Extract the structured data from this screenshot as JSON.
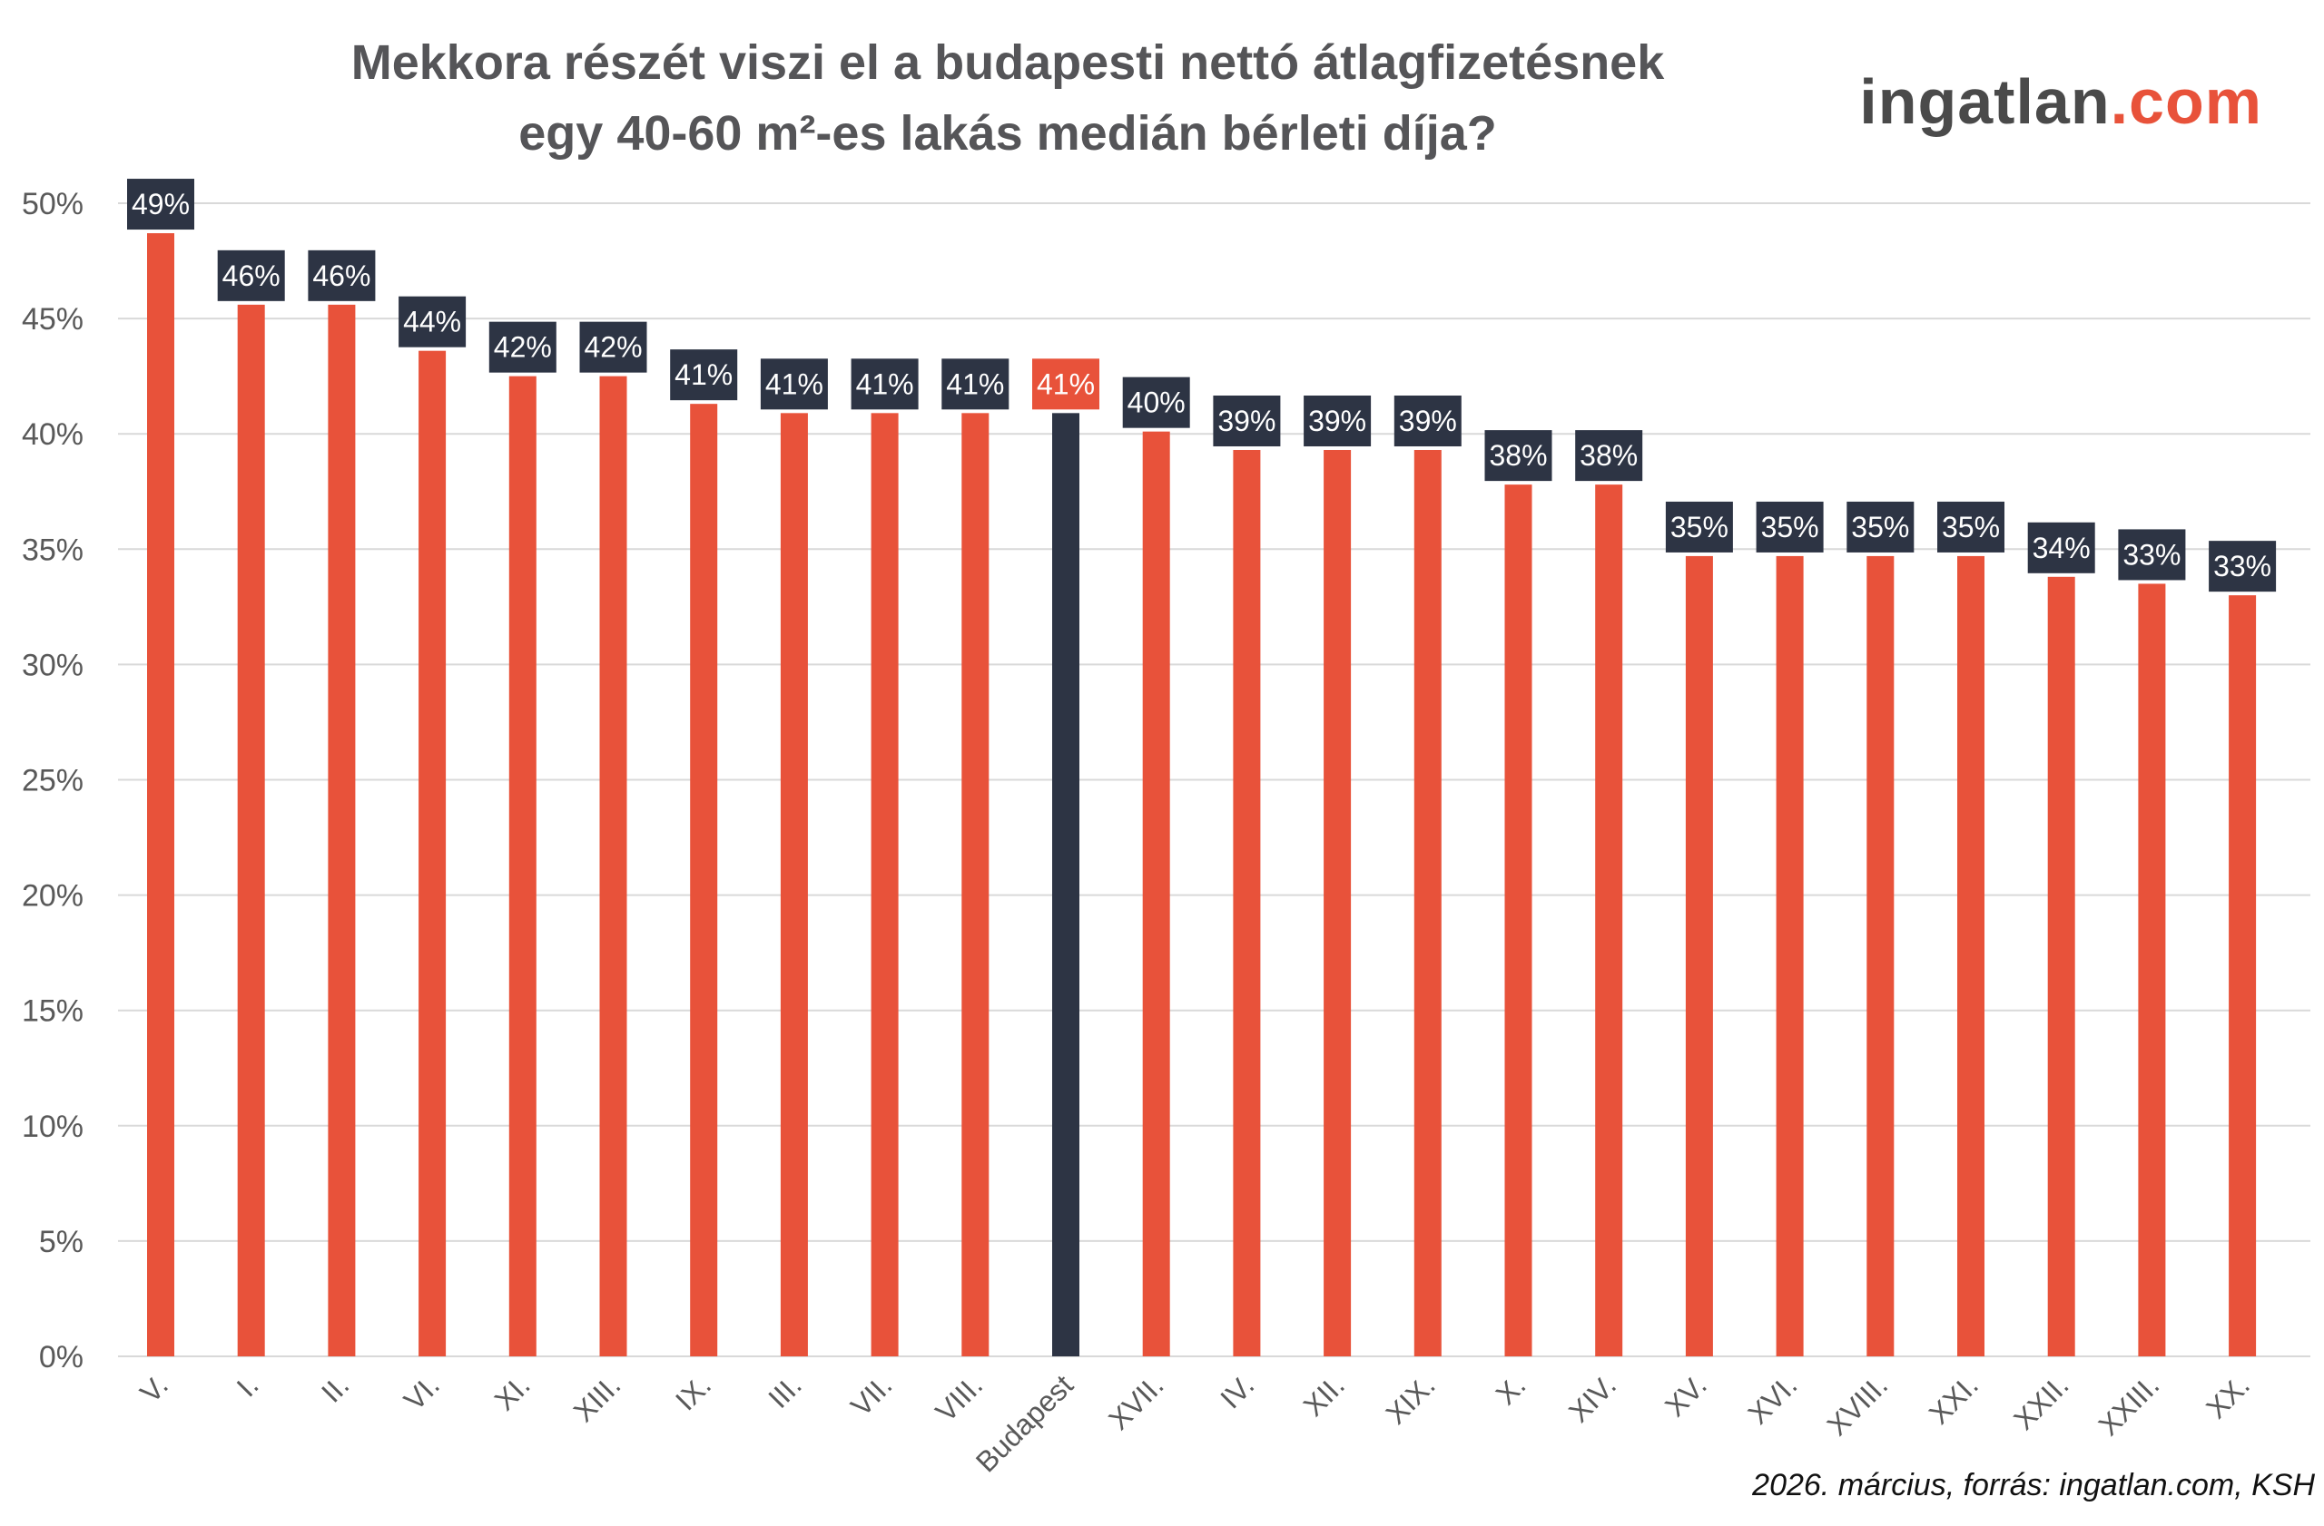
{
  "title_lines": [
    "Mekkora részét viszi el a budapesti nettó átlagfizetésnek",
    "egy 40-60 m²-es lakás medián bérleti díja?"
  ],
  "logo": {
    "part1": "ingatlan",
    "part2": ".com"
  },
  "footnote": "2026. március, forrás: ingatlan.com, KSH",
  "colors": {
    "bar": "#e8523a",
    "highlight_bar": "#2d3444",
    "label_bg": "#2d3444",
    "highlight_label_bg": "#e8523a",
    "grid": "#d9d9d9",
    "axis_text": "#595959"
  },
  "chart_data": {
    "type": "bar",
    "categories": [
      "V.",
      "I.",
      "II.",
      "VI.",
      "XI.",
      "XIII.",
      "IX.",
      "III.",
      "VII.",
      "VIII.",
      "Budapest",
      "XVII.",
      "IV.",
      "XII.",
      "XIX.",
      "X.",
      "XIV.",
      "XV.",
      "XVI.",
      "XVIII.",
      "XXI.",
      "XXII.",
      "XXIII.",
      "XX."
    ],
    "values": [
      48.7,
      45.6,
      45.6,
      43.6,
      42.5,
      42.5,
      41.3,
      40.9,
      40.9,
      40.9,
      40.9,
      40.1,
      39.3,
      39.3,
      39.3,
      37.8,
      37.8,
      34.7,
      34.7,
      34.7,
      34.7,
      33.8,
      33.5,
      33.0
    ],
    "labels": [
      "49%",
      "46%",
      "46%",
      "44%",
      "42%",
      "42%",
      "41%",
      "41%",
      "41%",
      "41%",
      "41%",
      "40%",
      "39%",
      "39%",
      "39%",
      "38%",
      "38%",
      "35%",
      "35%",
      "35%",
      "35%",
      "34%",
      "33%",
      "33%"
    ],
    "highlight": "Budapest",
    "ylim": [
      0,
      50
    ],
    "yticks": [
      0,
      5,
      10,
      15,
      20,
      25,
      30,
      35,
      40,
      45,
      50
    ],
    "ytick_labels": [
      "0%",
      "5%",
      "10%",
      "15%",
      "20%",
      "25%",
      "30%",
      "35%",
      "40%",
      "45%",
      "50%"
    ],
    "grid": true
  }
}
